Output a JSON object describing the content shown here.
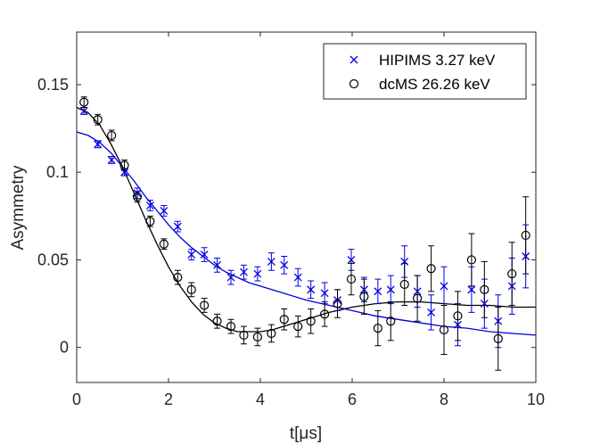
{
  "chart_data": {
    "type": "scatter",
    "xlabel": "t[μs]",
    "ylabel": "Asymmetry",
    "xlim": [
      0,
      10
    ],
    "ylim": [
      -0.02,
      0.18
    ],
    "xticks": [
      0,
      2,
      4,
      6,
      8,
      10
    ],
    "yticks": [
      0,
      0.05,
      0.1,
      0.15
    ],
    "grid": false,
    "legend_position": "top-right",
    "series": [
      {
        "name": "HIPIMS 3.27 keV",
        "marker": "x",
        "color": "#0000dd",
        "points": [
          {
            "x": 0.16,
            "y": 0.135,
            "err": 0.002
          },
          {
            "x": 0.46,
            "y": 0.116,
            "err": 0.002
          },
          {
            "x": 0.76,
            "y": 0.107,
            "err": 0.002
          },
          {
            "x": 1.04,
            "y": 0.1,
            "err": 0.002
          },
          {
            "x": 1.32,
            "y": 0.088,
            "err": 0.003
          },
          {
            "x": 1.6,
            "y": 0.081,
            "err": 0.003
          },
          {
            "x": 1.9,
            "y": 0.078,
            "err": 0.003
          },
          {
            "x": 2.2,
            "y": 0.069,
            "err": 0.003
          },
          {
            "x": 2.5,
            "y": 0.053,
            "err": 0.003
          },
          {
            "x": 2.78,
            "y": 0.053,
            "err": 0.004
          },
          {
            "x": 3.06,
            "y": 0.047,
            "err": 0.004
          },
          {
            "x": 3.36,
            "y": 0.04,
            "err": 0.004
          },
          {
            "x": 3.64,
            "y": 0.043,
            "err": 0.004
          },
          {
            "x": 3.94,
            "y": 0.042,
            "err": 0.004
          },
          {
            "x": 4.24,
            "y": 0.049,
            "err": 0.005
          },
          {
            "x": 4.52,
            "y": 0.047,
            "err": 0.005
          },
          {
            "x": 4.82,
            "y": 0.04,
            "err": 0.005
          },
          {
            "x": 5.1,
            "y": 0.033,
            "err": 0.005
          },
          {
            "x": 5.4,
            "y": 0.031,
            "err": 0.006
          },
          {
            "x": 5.68,
            "y": 0.027,
            "err": 0.006
          },
          {
            "x": 5.98,
            "y": 0.05,
            "err": 0.006
          },
          {
            "x": 6.26,
            "y": 0.033,
            "err": 0.007
          },
          {
            "x": 6.56,
            "y": 0.032,
            "err": 0.007
          },
          {
            "x": 6.84,
            "y": 0.033,
            "err": 0.008
          },
          {
            "x": 7.14,
            "y": 0.049,
            "err": 0.009
          },
          {
            "x": 7.42,
            "y": 0.032,
            "err": 0.009
          },
          {
            "x": 7.72,
            "y": 0.02,
            "err": 0.01
          },
          {
            "x": 8.0,
            "y": 0.035,
            "err": 0.011
          },
          {
            "x": 8.3,
            "y": 0.013,
            "err": 0.012
          },
          {
            "x": 8.6,
            "y": 0.033,
            "err": 0.013
          },
          {
            "x": 8.88,
            "y": 0.025,
            "err": 0.014
          },
          {
            "x": 9.18,
            "y": 0.015,
            "err": 0.015
          },
          {
            "x": 9.48,
            "y": 0.035,
            "err": 0.016
          },
          {
            "x": 9.78,
            "y": 0.052,
            "err": 0.018
          }
        ]
      },
      {
        "name": "dcMS 26.26 keV",
        "marker": "o",
        "color": "#000000",
        "points": [
          {
            "x": 0.16,
            "y": 0.14,
            "err": 0.003
          },
          {
            "x": 0.46,
            "y": 0.13,
            "err": 0.003
          },
          {
            "x": 0.76,
            "y": 0.121,
            "err": 0.003
          },
          {
            "x": 1.04,
            "y": 0.104,
            "err": 0.003
          },
          {
            "x": 1.32,
            "y": 0.086,
            "err": 0.003
          },
          {
            "x": 1.6,
            "y": 0.072,
            "err": 0.003
          },
          {
            "x": 1.9,
            "y": 0.059,
            "err": 0.003
          },
          {
            "x": 2.2,
            "y": 0.04,
            "err": 0.004
          },
          {
            "x": 2.5,
            "y": 0.033,
            "err": 0.004
          },
          {
            "x": 2.78,
            "y": 0.024,
            "err": 0.004
          },
          {
            "x": 3.06,
            "y": 0.015,
            "err": 0.004
          },
          {
            "x": 3.36,
            "y": 0.012,
            "err": 0.004
          },
          {
            "x": 3.64,
            "y": 0.007,
            "err": 0.005
          },
          {
            "x": 3.94,
            "y": 0.006,
            "err": 0.005
          },
          {
            "x": 4.24,
            "y": 0.008,
            "err": 0.005
          },
          {
            "x": 4.52,
            "y": 0.016,
            "err": 0.006
          },
          {
            "x": 4.82,
            "y": 0.012,
            "err": 0.006
          },
          {
            "x": 5.1,
            "y": 0.015,
            "err": 0.007
          },
          {
            "x": 5.4,
            "y": 0.019,
            "err": 0.007
          },
          {
            "x": 5.68,
            "y": 0.025,
            "err": 0.008
          },
          {
            "x": 5.98,
            "y": 0.039,
            "err": 0.009
          },
          {
            "x": 6.26,
            "y": 0.029,
            "err": 0.01
          },
          {
            "x": 6.56,
            "y": 0.011,
            "err": 0.01
          },
          {
            "x": 6.84,
            "y": 0.015,
            "err": 0.011
          },
          {
            "x": 7.14,
            "y": 0.036,
            "err": 0.012
          },
          {
            "x": 7.42,
            "y": 0.028,
            "err": 0.013
          },
          {
            "x": 7.72,
            "y": 0.045,
            "err": 0.013
          },
          {
            "x": 8.0,
            "y": 0.01,
            "err": 0.014
          },
          {
            "x": 8.3,
            "y": 0.018,
            "err": 0.014
          },
          {
            "x": 8.6,
            "y": 0.05,
            "err": 0.015
          },
          {
            "x": 8.88,
            "y": 0.033,
            "err": 0.016
          },
          {
            "x": 9.18,
            "y": 0.005,
            "err": 0.018
          },
          {
            "x": 9.48,
            "y": 0.042,
            "err": 0.018
          },
          {
            "x": 9.78,
            "y": 0.064,
            "err": 0.022
          }
        ]
      }
    ],
    "fits": [
      {
        "series": "HIPIMS 3.27 keV",
        "color": "#0000dd",
        "x": [
          0,
          0.25,
          0.5,
          0.75,
          1,
          1.25,
          1.5,
          1.75,
          2,
          2.25,
          2.5,
          2.75,
          3,
          3.25,
          3.5,
          3.75,
          4,
          4.5,
          5,
          5.5,
          6,
          6.5,
          7,
          7.5,
          8,
          8.5,
          9,
          9.5,
          10
        ],
        "y": [
          0.123,
          0.121,
          0.117,
          0.111,
          0.103,
          0.095,
          0.086,
          0.078,
          0.07,
          0.063,
          0.057,
          0.052,
          0.047,
          0.043,
          0.04,
          0.037,
          0.035,
          0.031,
          0.027,
          0.024,
          0.021,
          0.018,
          0.016,
          0.014,
          0.012,
          0.011,
          0.009,
          0.008,
          0.007
        ]
      },
      {
        "series": "dcMS 26.26 keV",
        "color": "#000000",
        "x": [
          0,
          0.25,
          0.5,
          0.75,
          1,
          1.25,
          1.5,
          1.75,
          2,
          2.25,
          2.5,
          2.75,
          3,
          3.25,
          3.5,
          3.75,
          4,
          4.25,
          4.5,
          4.75,
          5,
          5.5,
          6,
          6.5,
          7,
          7.5,
          8,
          8.5,
          9,
          9.5,
          10
        ],
        "y": [
          0.137,
          0.134,
          0.127,
          0.116,
          0.103,
          0.088,
          0.073,
          0.059,
          0.046,
          0.035,
          0.026,
          0.019,
          0.014,
          0.011,
          0.009,
          0.009,
          0.009,
          0.01,
          0.012,
          0.014,
          0.016,
          0.02,
          0.023,
          0.025,
          0.026,
          0.026,
          0.025,
          0.024,
          0.024,
          0.023,
          0.023
        ]
      }
    ]
  }
}
